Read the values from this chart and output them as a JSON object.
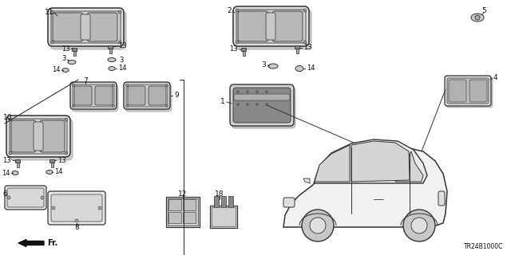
{
  "part_code": "TR24B1000C",
  "bg_color": "#ffffff",
  "line_color": "#333333",
  "text_color": "#111111"
}
